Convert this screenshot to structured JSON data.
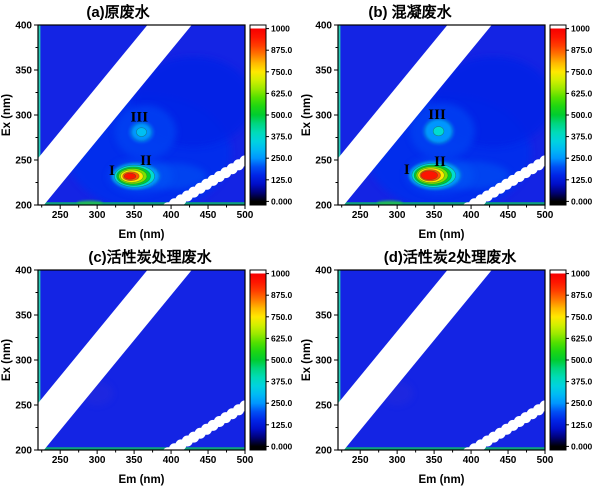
{
  "figure_type": "EEM fluorescence contour plots (2x2)",
  "colors": {
    "plot_background": "#1424e4",
    "scatter_band": "#ffffff",
    "colorbar_bottom": "#000000",
    "colorbar_overflow_top": "#ffffff",
    "frame": "#000000"
  },
  "chart_data": [
    {
      "id": "a",
      "type": "heatmap",
      "title": "(a)原废水",
      "xlabel": "Em (nm)",
      "ylabel": "Ex (nm)",
      "x_range": [
        220,
        500
      ],
      "y_range": [
        200,
        400
      ],
      "x_ticks": [
        250,
        300,
        350,
        400,
        450,
        500
      ],
      "y_ticks": [
        200,
        250,
        300,
        350,
        400
      ],
      "colorbar": {
        "range": [
          0,
          1000
        ],
        "ticks": [
          "1000",
          "875.0",
          "750.0",
          "625.0",
          "500.0",
          "375.0",
          "250.0",
          "125.0",
          "0.000"
        ]
      },
      "peaks": [
        {
          "label": "II",
          "em": 353,
          "ex": 232,
          "intensity": 1040,
          "em_sigma": 19,
          "ex_sigma": 8.5
        },
        {
          "label": "III",
          "em": 360,
          "ex": 281,
          "intensity": 330,
          "em_sigma": 18,
          "ex_sigma": 13
        }
      ],
      "annotations": [
        {
          "text": "I",
          "em": 320,
          "ex": 238
        },
        {
          "text": "II",
          "em": 366,
          "ex": 249
        },
        {
          "text": "III",
          "em": 357,
          "ex": 297
        }
      ],
      "scatter_bands": {
        "first_order": "Em = Ex",
        "second_order": "Em = 2Ex"
      }
    },
    {
      "id": "b",
      "type": "heatmap",
      "title": "(b) 混凝废水",
      "xlabel": "Em (nm)",
      "ylabel": "Ex (nm)",
      "x_range": [
        220,
        500
      ],
      "y_range": [
        200,
        400
      ],
      "x_ticks": [
        250,
        300,
        350,
        400,
        450,
        500
      ],
      "y_ticks": [
        200,
        250,
        300,
        350,
        400
      ],
      "colorbar": {
        "range": [
          0,
          1000
        ],
        "ticks": [
          "1000",
          "875.0",
          "750.0",
          "625.0",
          "500.0",
          "375.0",
          "250.0",
          "125.0",
          "0.000"
        ]
      },
      "peaks": [
        {
          "label": "II",
          "em": 352,
          "ex": 233,
          "intensity": 1120,
          "em_sigma": 20,
          "ex_sigma": 9
        },
        {
          "label": "III",
          "em": 356,
          "ex": 282,
          "intensity": 400,
          "em_sigma": 19,
          "ex_sigma": 13.5
        }
      ],
      "annotations": [
        {
          "text": "I",
          "em": 313,
          "ex": 239
        },
        {
          "text": "II",
          "em": 358,
          "ex": 248
        },
        {
          "text": "III",
          "em": 354,
          "ex": 300
        }
      ],
      "scatter_bands": {
        "first_order": "Em = Ex",
        "second_order": "Em = 2Ex"
      }
    },
    {
      "id": "c",
      "type": "heatmap",
      "title": "(c)活性炭处理废水",
      "xlabel": "Em (nm)",
      "ylabel": "Ex (nm)",
      "x_range": [
        220,
        500
      ],
      "y_range": [
        200,
        400
      ],
      "x_ticks": [
        250,
        300,
        350,
        400,
        450,
        500
      ],
      "y_ticks": [
        200,
        250,
        300,
        350,
        400
      ],
      "colorbar": {
        "range": [
          0,
          1000
        ],
        "ticks": [
          "1000",
          "875.0",
          "750.0",
          "625.0",
          "500.0",
          "375.0",
          "250.0",
          "125.0",
          "0.000"
        ]
      },
      "peaks": [],
      "annotations": [],
      "scatter_bands": {
        "first_order": "Em = Ex",
        "second_order": "Em = 2Ex"
      }
    },
    {
      "id": "d",
      "type": "heatmap",
      "title": "(d)活性炭2处理废水",
      "xlabel": "Em (nm)",
      "ylabel": "Ex (nm)",
      "x_range": [
        220,
        500
      ],
      "y_range": [
        200,
        400
      ],
      "x_ticks": [
        250,
        300,
        350,
        400,
        450,
        500
      ],
      "y_ticks": [
        200,
        250,
        300,
        350,
        400
      ],
      "colorbar": {
        "range": [
          0,
          1000
        ],
        "ticks": [
          "1000",
          "875.0",
          "750.0",
          "625.0",
          "500.0",
          "375.0",
          "250.0",
          "125.0",
          "0.000"
        ]
      },
      "peaks": [],
      "annotations": [],
      "scatter_bands": {
        "first_order": "Em = Ex",
        "second_order": "Em = 2Ex"
      }
    }
  ]
}
